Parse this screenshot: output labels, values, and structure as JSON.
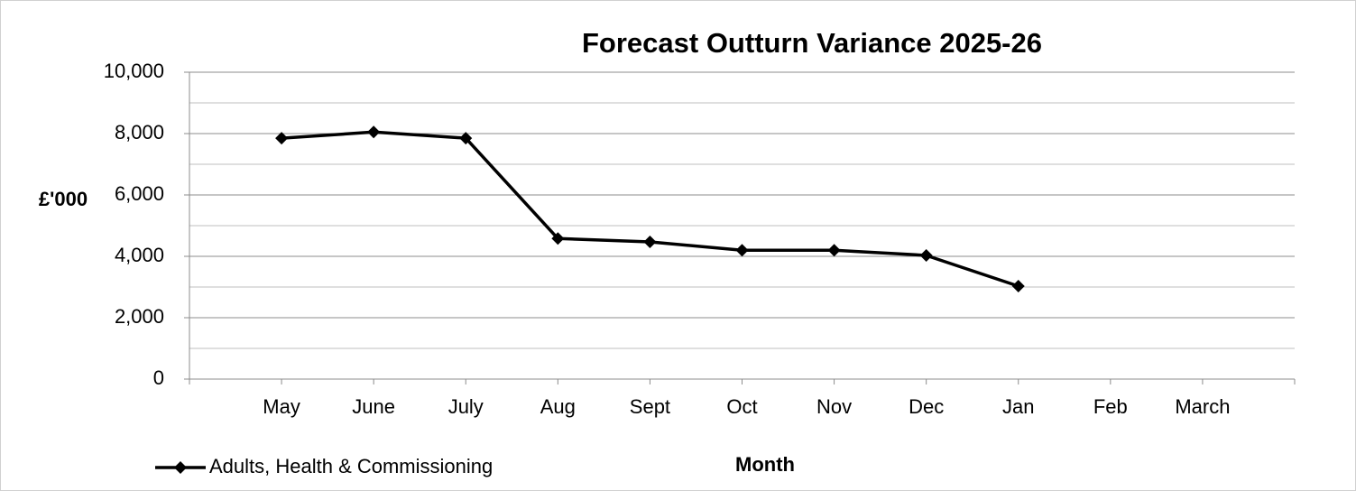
{
  "chart_data": {
    "type": "line",
    "title": "Forecast Outturn Variance 2025-26",
    "x_label": "Month",
    "y_label": "£'000",
    "categories": [
      "May",
      "June",
      "July",
      "Aug",
      "Sept",
      "Oct",
      "Nov",
      "Dec",
      "Jan",
      "Feb",
      "March"
    ],
    "series": [
      {
        "name": "Adults, Health & Commissioning",
        "color": "#000000",
        "values": [
          7850,
          8050,
          7850,
          4580,
          4470,
          4200,
          4200,
          4030,
          3030,
          null,
          null
        ]
      }
    ],
    "ylim": [
      0,
      10000
    ],
    "yticks": [
      0,
      {
        "value": 2000,
        "label": "2,000"
      },
      {
        "value": 4000,
        "label": "4,000"
      },
      {
        "value": 6000,
        "label": "6,000"
      },
      {
        "value": 8000,
        "label": "8,000"
      },
      {
        "value": 10000,
        "label": "10,000"
      }
    ],
    "minor_yticks": [
      1000,
      3000,
      5000,
      7000,
      9000
    ],
    "grid": true,
    "legend": "bottom-left"
  }
}
